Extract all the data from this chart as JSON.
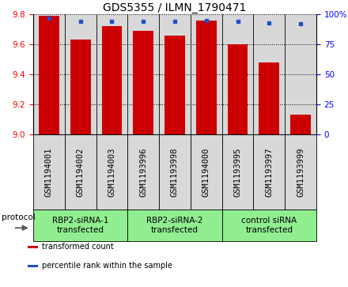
{
  "title": "GDS5355 / ILMN_1790471",
  "samples": [
    "GSM1194001",
    "GSM1194002",
    "GSM1194003",
    "GSM1193996",
    "GSM1193998",
    "GSM1194000",
    "GSM1193995",
    "GSM1193997",
    "GSM1193999"
  ],
  "bar_values": [
    9.79,
    9.63,
    9.72,
    9.69,
    9.66,
    9.76,
    9.6,
    9.48,
    9.13
  ],
  "percentile_values": [
    97,
    94,
    94,
    94,
    94,
    95,
    94,
    93,
    92
  ],
  "ylim_left": [
    9.0,
    9.8
  ],
  "ylim_right": [
    0,
    100
  ],
  "yticks_left": [
    9.0,
    9.2,
    9.4,
    9.6,
    9.8
  ],
  "yticks_right": [
    0,
    25,
    50,
    75,
    100
  ],
  "bar_color": "#CC0000",
  "dot_color": "#1F4FCC",
  "groups": [
    {
      "label": "RBP2-siRNA-1\ntransfected",
      "start": 0,
      "end": 3,
      "color": "#90EE90"
    },
    {
      "label": "RBP2-siRNA-2\ntransfected",
      "start": 3,
      "end": 6,
      "color": "#90EE90"
    },
    {
      "label": "control siRNA\ntransfected",
      "start": 6,
      "end": 9,
      "color": "#90EE90"
    }
  ],
  "protocol_label": "protocol",
  "legend_items": [
    {
      "color": "#CC0000",
      "label": "transformed count"
    },
    {
      "color": "#1F4FCC",
      "label": "percentile rank within the sample"
    }
  ],
  "bg_color": "#D8D8D8",
  "title_fontsize": 10,
  "tick_label_fontsize": 7.5,
  "group_label_fontsize": 7.5
}
